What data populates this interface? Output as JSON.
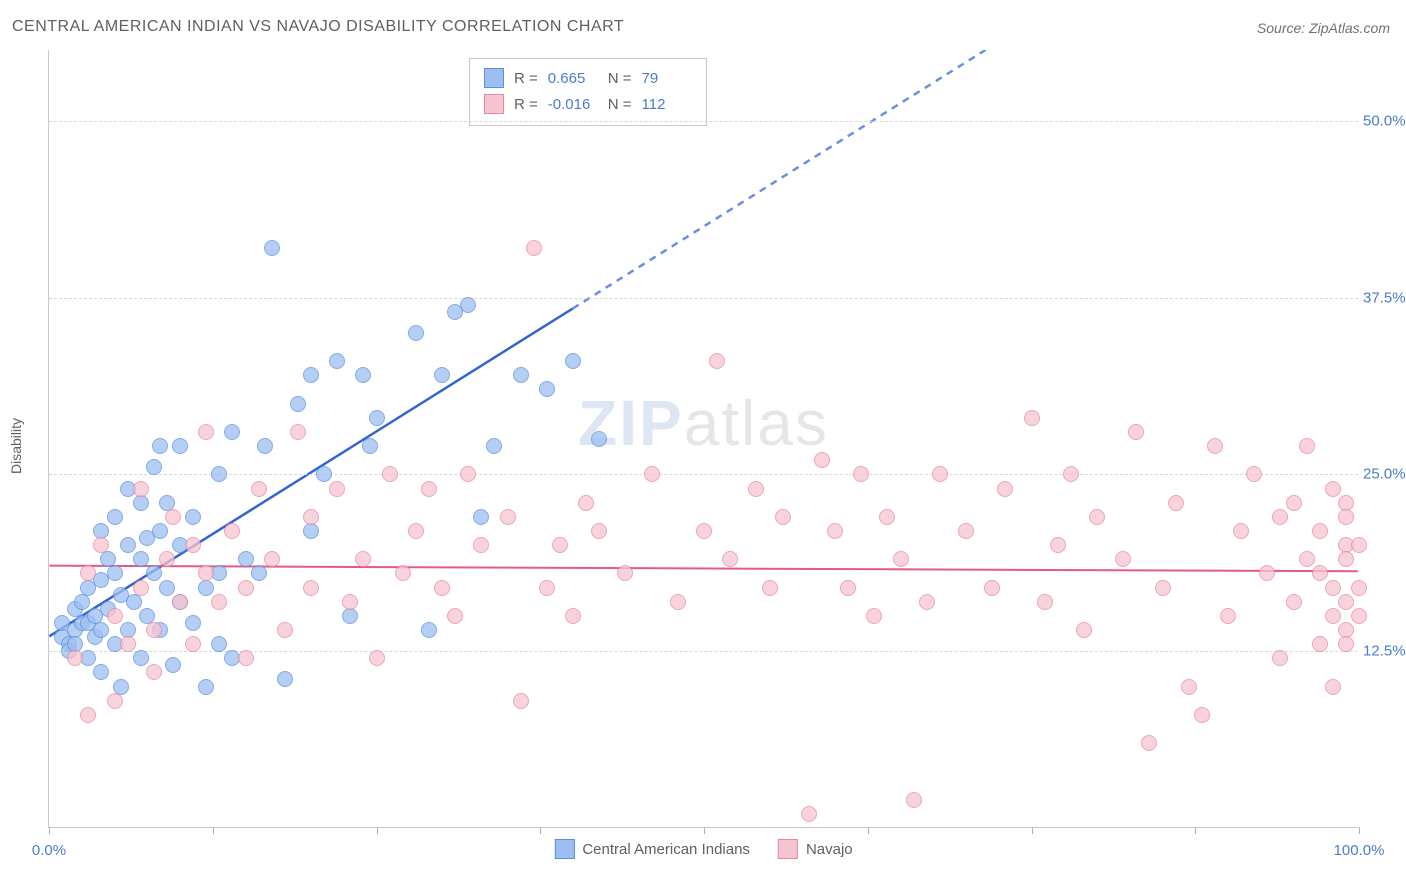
{
  "title": "CENTRAL AMERICAN INDIAN VS NAVAJO DISABILITY CORRELATION CHART",
  "source": {
    "prefix": "Source:",
    "name": "ZipAtlas.com"
  },
  "watermark": {
    "part1": "ZIP",
    "part2": "atlas"
  },
  "y_axis": {
    "label": "Disability",
    "min": 0,
    "max": 55,
    "ticks": [
      12.5,
      25.0,
      37.5,
      50.0
    ],
    "tick_labels": [
      "12.5%",
      "25.0%",
      "37.5%",
      "50.0%"
    ],
    "label_color": "#4a7bd0",
    "grid_color": "#d8d8d8"
  },
  "x_axis": {
    "min": 0,
    "max": 100,
    "ticks": [
      0,
      12.5,
      25,
      37.5,
      50,
      62.5,
      75,
      87.5,
      100
    ],
    "end_labels": {
      "left": "0.0%",
      "right": "100.0%"
    },
    "label_color": "#4a7bd0"
  },
  "correlation_box": {
    "r_label": "R =",
    "n_label": "N ="
  },
  "point_style": {
    "radius": 8,
    "border_width": 1.5,
    "fill_opacity": 0.35
  },
  "series": [
    {
      "id": "central_american_indians",
      "label": "Central American Indians",
      "fill_color": "#9dbef0",
      "border_color": "#5b8fe0",
      "r": "0.665",
      "n": "79",
      "trend": {
        "slope": 0.58,
        "intercept": 13.5,
        "solid_x_end": 40,
        "dash_x_end": 75,
        "solid_color": "#3366cc",
        "dash_color": "#6a8fe0",
        "width": 2.5
      },
      "points": [
        [
          1,
          13.5
        ],
        [
          1,
          14.5
        ],
        [
          1.5,
          13
        ],
        [
          1.5,
          12.5
        ],
        [
          2,
          14
        ],
        [
          2,
          15.5
        ],
        [
          2,
          13
        ],
        [
          2.5,
          16
        ],
        [
          2.5,
          14.5
        ],
        [
          3,
          12
        ],
        [
          3,
          14.5
        ],
        [
          3,
          17
        ],
        [
          3.5,
          13.5
        ],
        [
          3.5,
          15
        ],
        [
          4,
          11
        ],
        [
          4,
          14
        ],
        [
          4,
          17.5
        ],
        [
          4,
          21
        ],
        [
          4.5,
          15.5
        ],
        [
          4.5,
          19
        ],
        [
          5,
          13
        ],
        [
          5,
          18
        ],
        [
          5,
          22
        ],
        [
          5.5,
          10
        ],
        [
          5.5,
          16.5
        ],
        [
          6,
          14
        ],
        [
          6,
          20
        ],
        [
          6,
          24
        ],
        [
          6.5,
          16
        ],
        [
          7,
          12
        ],
        [
          7,
          19
        ],
        [
          7,
          23
        ],
        [
          7.5,
          15
        ],
        [
          7.5,
          20.5
        ],
        [
          8,
          18
        ],
        [
          8,
          25.5
        ],
        [
          8.5,
          14
        ],
        [
          8.5,
          21
        ],
        [
          8.5,
          27
        ],
        [
          9,
          17
        ],
        [
          9,
          23
        ],
        [
          9.5,
          11.5
        ],
        [
          10,
          16
        ],
        [
          10,
          27
        ],
        [
          10,
          20
        ],
        [
          11,
          14.5
        ],
        [
          11,
          22
        ],
        [
          12,
          17
        ],
        [
          12,
          10
        ],
        [
          13,
          25
        ],
        [
          13,
          13
        ],
        [
          13,
          18
        ],
        [
          14,
          12
        ],
        [
          14,
          28
        ],
        [
          15,
          19
        ],
        [
          16,
          18
        ],
        [
          16.5,
          27
        ],
        [
          17,
          41
        ],
        [
          18,
          10.5
        ],
        [
          19,
          30
        ],
        [
          20,
          21
        ],
        [
          20,
          32
        ],
        [
          21,
          25
        ],
        [
          22,
          33
        ],
        [
          23,
          15
        ],
        [
          24,
          32
        ],
        [
          24.5,
          27
        ],
        [
          25,
          29
        ],
        [
          28,
          35
        ],
        [
          29,
          14
        ],
        [
          30,
          32
        ],
        [
          31,
          36.5
        ],
        [
          32,
          37
        ],
        [
          33,
          22
        ],
        [
          34,
          27
        ],
        [
          36,
          32
        ],
        [
          38,
          31
        ],
        [
          40,
          33
        ],
        [
          42,
          27.5
        ]
      ]
    },
    {
      "id": "navajo",
      "label": "Navajo",
      "fill_color": "#f7c5d1",
      "border_color": "#e589a3",
      "r": "-0.016",
      "n": "112",
      "trend": {
        "slope": -0.004,
        "intercept": 18.5,
        "solid_x_end": 100,
        "dash_x_end": 100,
        "solid_color": "#e05a8a",
        "dash_color": "#e05a8a",
        "width": 2
      },
      "points": [
        [
          2,
          12
        ],
        [
          3,
          18
        ],
        [
          3,
          8
        ],
        [
          4,
          20
        ],
        [
          5,
          15
        ],
        [
          5,
          9
        ],
        [
          6,
          13
        ],
        [
          7,
          17
        ],
        [
          7,
          24
        ],
        [
          8,
          11
        ],
        [
          8,
          14
        ],
        [
          9,
          19
        ],
        [
          9.5,
          22
        ],
        [
          10,
          16
        ],
        [
          11,
          13
        ],
        [
          11,
          20
        ],
        [
          12,
          18
        ],
        [
          12,
          28
        ],
        [
          13,
          16
        ],
        [
          14,
          21
        ],
        [
          15,
          12
        ],
        [
          15,
          17
        ],
        [
          16,
          24
        ],
        [
          17,
          19
        ],
        [
          18,
          14
        ],
        [
          19,
          28
        ],
        [
          20,
          17
        ],
        [
          20,
          22
        ],
        [
          22,
          24
        ],
        [
          23,
          16
        ],
        [
          24,
          19
        ],
        [
          25,
          12
        ],
        [
          26,
          25
        ],
        [
          27,
          18
        ],
        [
          28,
          21
        ],
        [
          29,
          24
        ],
        [
          30,
          17
        ],
        [
          31,
          15
        ],
        [
          32,
          25
        ],
        [
          33,
          20
        ],
        [
          35,
          22
        ],
        [
          36,
          9
        ],
        [
          37,
          41
        ],
        [
          38,
          17
        ],
        [
          39,
          20
        ],
        [
          40,
          15
        ],
        [
          41,
          23
        ],
        [
          42,
          21
        ],
        [
          44,
          18
        ],
        [
          46,
          25
        ],
        [
          48,
          16
        ],
        [
          50,
          21
        ],
        [
          51,
          33
        ],
        [
          52,
          19
        ],
        [
          54,
          24
        ],
        [
          55,
          17
        ],
        [
          56,
          22
        ],
        [
          58,
          1
        ],
        [
          59,
          26
        ],
        [
          60,
          21
        ],
        [
          61,
          17
        ],
        [
          62,
          25
        ],
        [
          63,
          15
        ],
        [
          64,
          22
        ],
        [
          65,
          19
        ],
        [
          66,
          2
        ],
        [
          67,
          16
        ],
        [
          68,
          25
        ],
        [
          70,
          21
        ],
        [
          72,
          17
        ],
        [
          73,
          24
        ],
        [
          75,
          29
        ],
        [
          76,
          16
        ],
        [
          77,
          20
        ],
        [
          78,
          25
        ],
        [
          79,
          14
        ],
        [
          80,
          22
        ],
        [
          82,
          19
        ],
        [
          83,
          28
        ],
        [
          84,
          6
        ],
        [
          85,
          17
        ],
        [
          86,
          23
        ],
        [
          87,
          10
        ],
        [
          88,
          8
        ],
        [
          89,
          27
        ],
        [
          90,
          15
        ],
        [
          91,
          21
        ],
        [
          92,
          25
        ],
        [
          93,
          18
        ],
        [
          94,
          12
        ],
        [
          94,
          22
        ],
        [
          95,
          16
        ],
        [
          95,
          23
        ],
        [
          96,
          19
        ],
        [
          96,
          27
        ],
        [
          97,
          13
        ],
        [
          97,
          21
        ],
        [
          97,
          18
        ],
        [
          98,
          15
        ],
        [
          98,
          24
        ],
        [
          98,
          17
        ],
        [
          98,
          10
        ],
        [
          99,
          20
        ],
        [
          99,
          14
        ],
        [
          99,
          23
        ],
        [
          99,
          16
        ],
        [
          99,
          19
        ],
        [
          99,
          13
        ],
        [
          99,
          22
        ],
        [
          100,
          17
        ],
        [
          100,
          15
        ],
        [
          100,
          20
        ]
      ]
    }
  ]
}
